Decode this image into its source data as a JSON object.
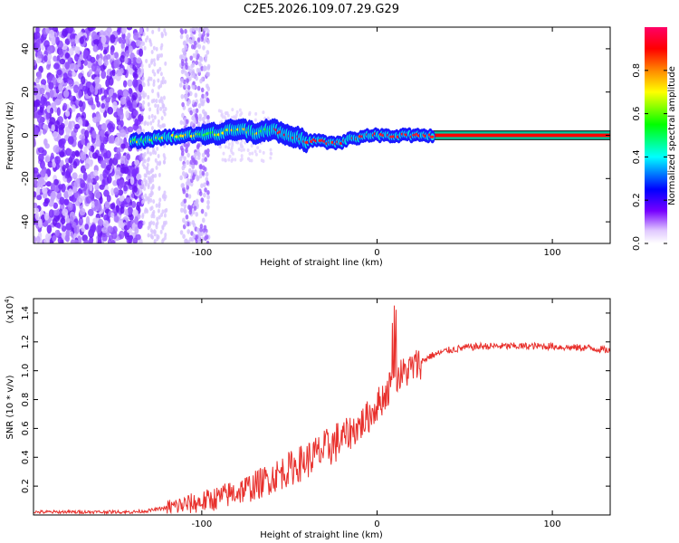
{
  "title": "C2E5.2026.109.07.29.G29",
  "chart_data": [
    {
      "type": "heatmap",
      "xlabel": "Height of straight line (km)",
      "ylabel": "Frequency (Hz)",
      "xlim": [
        -196,
        133
      ],
      "ylim": [
        -50,
        50
      ],
      "x_ticks": [
        -100,
        0,
        100
      ],
      "x_tick_labels": [
        "-100",
        "0",
        "100"
      ],
      "y_ticks": [
        -40,
        -20,
        0,
        20,
        40
      ],
      "y_tick_labels": [
        "-40",
        "-20",
        "0",
        "20",
        "40"
      ],
      "ridge": {
        "description": "dominant frequency trace",
        "x": [
          -140,
          -130,
          -120,
          -110,
          -100,
          -95,
          -90,
          -85,
          -80,
          -75,
          -70,
          -65,
          -60,
          -55,
          -50,
          -45,
          -40,
          -35,
          -30,
          -25,
          -20,
          -15,
          -10,
          -5,
          0,
          5,
          10,
          20,
          30,
          40,
          60,
          80,
          100,
          133
        ],
        "y": [
          -3,
          -2,
          -1,
          0,
          0,
          1,
          0,
          2,
          3,
          2,
          1,
          2,
          3,
          1,
          0,
          -1,
          -3,
          -2,
          -3,
          -4,
          -3,
          -1,
          -1,
          0,
          0,
          0,
          0,
          0,
          0,
          0,
          0,
          0,
          0,
          0
        ]
      },
      "colorbar": {
        "label": "Normalized spectral amplitude",
        "range": [
          0,
          1
        ],
        "ticks": [
          0.0,
          0.2,
          0.4,
          0.6,
          0.8
        ],
        "tick_labels": [
          "0.0",
          "0.2",
          "0.4",
          "0.6",
          "0.8"
        ],
        "colors": [
          "#ffffff",
          "#7700ff",
          "#0000ff",
          "#00ffff",
          "#00ff00",
          "#ffff00",
          "#ff8800",
          "#ff0000",
          "#ff0066"
        ]
      }
    },
    {
      "type": "line",
      "xlabel": "Height of straight line (km)",
      "ylabel": "SNR (10 * v/v)",
      "y_multiplier": "(x10",
      "y_multiplier_exp": "4",
      "y_multiplier_close": ")",
      "xlim": [
        -196,
        133
      ],
      "ylim": [
        0,
        1.5
      ],
      "x_ticks": [
        -100,
        0,
        100
      ],
      "x_tick_labels": [
        "-100",
        "0",
        "100"
      ],
      "y_ticks": [
        0.2,
        0.4,
        0.6,
        0.8,
        1.0,
        1.2,
        1.4
      ],
      "y_tick_labels": [
        "0.2",
        "0.4",
        "0.6",
        "0.8",
        "1.0",
        "1.2",
        "1.4"
      ],
      "color": "#e8302c",
      "series": [
        {
          "name": "SNR",
          "x": [
            -196,
            -180,
            -160,
            -140,
            -130,
            -120,
            -110,
            -100,
            -90,
            -80,
            -70,
            -60,
            -50,
            -40,
            -30,
            -20,
            -10,
            -5,
            0,
            5,
            10,
            15,
            20,
            30,
            40,
            50,
            60,
            70,
            80,
            90,
            100,
            110,
            120,
            133
          ],
          "y": [
            0.02,
            0.02,
            0.02,
            0.02,
            0.03,
            0.05,
            0.07,
            0.09,
            0.12,
            0.16,
            0.2,
            0.26,
            0.32,
            0.38,
            0.45,
            0.53,
            0.62,
            0.68,
            0.76,
            0.84,
            0.95,
            0.98,
            1.02,
            1.1,
            1.14,
            1.16,
            1.17,
            1.17,
            1.17,
            1.17,
            1.17,
            1.16,
            1.16,
            1.14
          ]
        }
      ],
      "spike": {
        "x": 10,
        "y": 1.5
      }
    }
  ]
}
